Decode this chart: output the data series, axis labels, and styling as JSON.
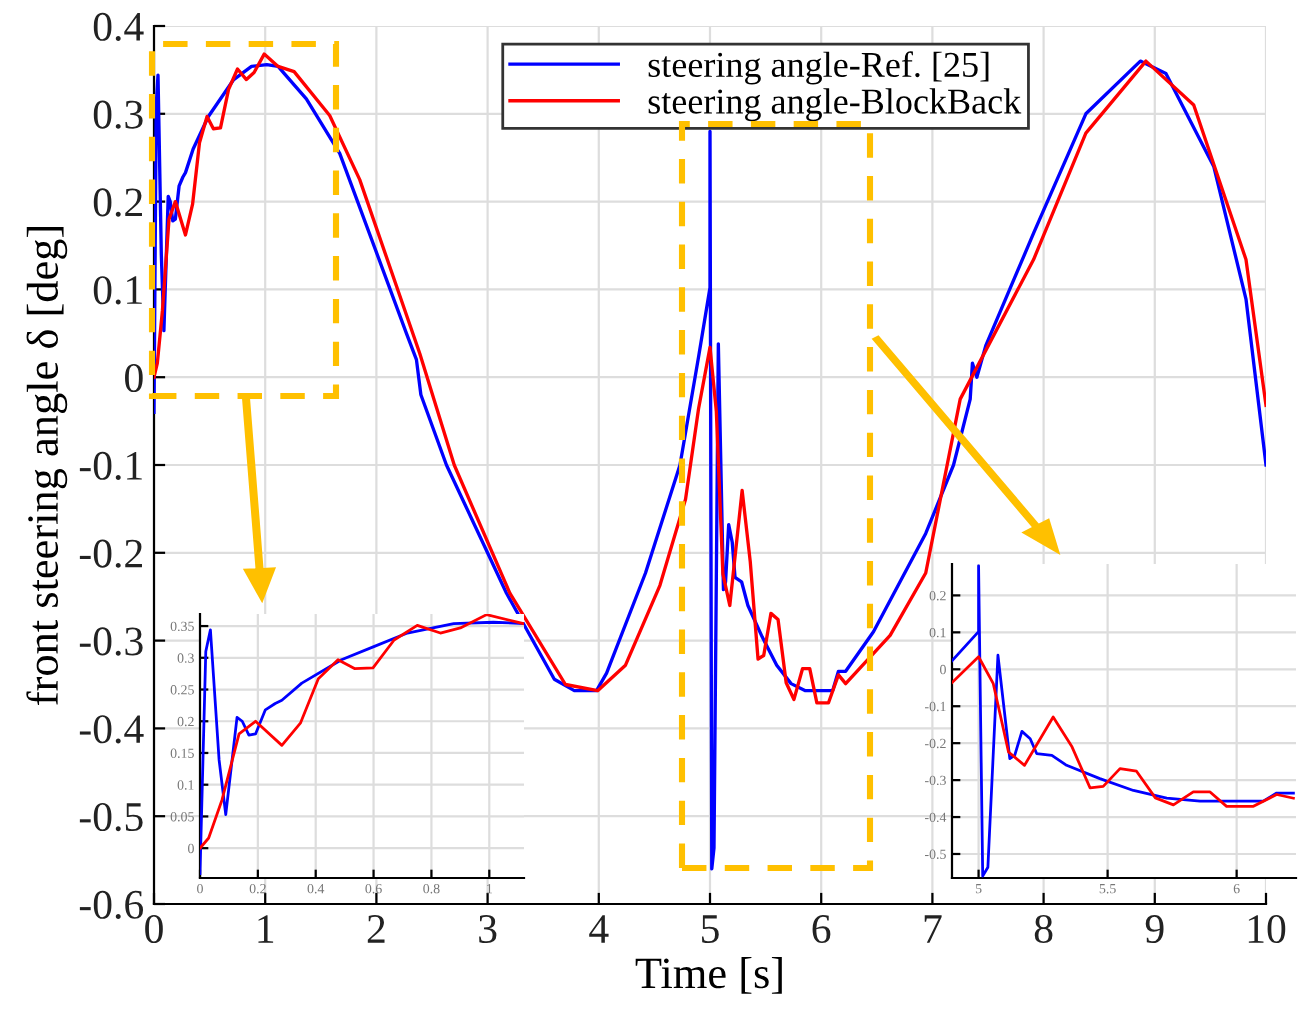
{
  "chart_data": [
    {
      "type": "line",
      "xlabel": "Time [s]",
      "ylabel": "front steering angle δ [deg]",
      "xlim": [
        0,
        10
      ],
      "ylim": [
        -0.6,
        0.4
      ],
      "xticks": [
        0,
        1,
        2,
        3,
        4,
        5,
        6,
        7,
        8,
        9,
        10
      ],
      "yticks": [
        -0.6,
        -0.5,
        -0.4,
        -0.3,
        -0.2,
        -0.1,
        0,
        0.1,
        0.2,
        0.3,
        0.4
      ],
      "grid": true,
      "legend": "top",
      "series": [
        {
          "name": "steering angle-Ref. [25]",
          "color": "#0000ff",
          "x": [
            0,
            0.02,
            0.036,
            0.066,
            0.089,
            0.128,
            0.146,
            0.169,
            0.192,
            0.226,
            0.26,
            0.283,
            0.352,
            0.489,
            0.603,
            0.717,
            0.877,
            1.014,
            1.116,
            1.17,
            1.37,
            1.67,
            2.27,
            2.36,
            2.4,
            2.63,
            3.17,
            3.6,
            3.78,
            3.98,
            4.07,
            4.42,
            4.73,
            4.897,
            5.0,
            5.0,
            5.016,
            5.036,
            5.075,
            5.121,
            5.14,
            5.168,
            5.2,
            5.225,
            5.284,
            5.341,
            5.47,
            5.6,
            5.729,
            5.858,
            6.103,
            6.155,
            6.22,
            6.47,
            6.94,
            7.19,
            7.34,
            7.36,
            7.4,
            7.48,
            7.91,
            8.38,
            8.87,
            9.1,
            9.53,
            9.82,
            10
          ],
          "values": [
            -0.04,
            0.31,
            0.344,
            0.139,
            0.053,
            0.206,
            0.2,
            0.178,
            0.18,
            0.218,
            0.228,
            0.233,
            0.26,
            0.297,
            0.318,
            0.339,
            0.354,
            0.356,
            0.354,
            0.346,
            0.317,
            0.255,
            0.05,
            0.02,
            -0.02,
            -0.1,
            -0.246,
            -0.344,
            -0.357,
            -0.357,
            -0.337,
            -0.223,
            -0.1,
            0.023,
            0.102,
            0.28,
            -0.56,
            -0.536,
            0.038,
            -0.242,
            -0.233,
            -0.168,
            -0.188,
            -0.228,
            -0.233,
            -0.26,
            -0.296,
            -0.328,
            -0.349,
            -0.357,
            -0.357,
            -0.335,
            -0.335,
            -0.29,
            -0.178,
            -0.1,
            -0.025,
            0.016,
            0.0,
            0.036,
            0.164,
            0.3,
            0.36,
            0.346,
            0.24,
            0.089,
            -0.1
          ]
        },
        {
          "name": "steering angle-BlockBack",
          "color": "#ff0000",
          "x": [
            0,
            0.03,
            0.076,
            0.135,
            0.192,
            0.283,
            0.347,
            0.409,
            0.477,
            0.534,
            0.598,
            0.671,
            0.751,
            0.831,
            0.9,
            0.991,
            1.116,
            1.26,
            1.58,
            1.85,
            2.39,
            2.7,
            3.2,
            3.7,
            3.99,
            4.24,
            4.55,
            4.78,
            4.897,
            5.0,
            5.057,
            5.116,
            5.178,
            5.289,
            5.362,
            5.432,
            5.483,
            5.548,
            5.612,
            5.685,
            5.755,
            5.832,
            5.897,
            5.961,
            6.065,
            6.155,
            6.22,
            6.62,
            6.94,
            7.25,
            7.91,
            8.38,
            8.92,
            9.35,
            9.82,
            10
          ],
          "values": [
            0,
            0.016,
            0.076,
            0.18,
            0.2,
            0.162,
            0.197,
            0.267,
            0.297,
            0.283,
            0.284,
            0.328,
            0.351,
            0.339,
            0.347,
            0.368,
            0.354,
            0.348,
            0.298,
            0.225,
            0.027,
            -0.1,
            -0.246,
            -0.35,
            -0.357,
            -0.328,
            -0.237,
            -0.139,
            -0.036,
            0.034,
            -0.039,
            -0.224,
            -0.26,
            -0.129,
            -0.21,
            -0.321,
            -0.317,
            -0.269,
            -0.276,
            -0.348,
            -0.367,
            -0.332,
            -0.332,
            -0.371,
            -0.371,
            -0.339,
            -0.349,
            -0.294,
            -0.223,
            -0.025,
            0.134,
            0.278,
            0.36,
            0.31,
            0.134,
            -0.032
          ]
        }
      ]
    },
    {
      "type": "line",
      "xlim": [
        0,
        1.12
      ],
      "ylim": [
        -0.047,
        0.369
      ],
      "xticks": [
        0,
        0.2,
        0.4,
        0.6,
        0.8,
        1
      ],
      "yticks": [
        0,
        0.05,
        0.1,
        0.15,
        0.2,
        0.25,
        0.3,
        0.35
      ],
      "grid": true,
      "series": [
        {
          "color": "#0000ff",
          "x": [
            0,
            0.02,
            0.036,
            0.066,
            0.089,
            0.128,
            0.146,
            0.169,
            0.192,
            0.226,
            0.26,
            0.283,
            0.352,
            0.489,
            0.603,
            0.717,
            0.877,
            1.014,
            1.116
          ],
          "values": [
            -0.04,
            0.31,
            0.344,
            0.139,
            0.053,
            0.206,
            0.2,
            0.178,
            0.18,
            0.218,
            0.228,
            0.233,
            0.26,
            0.297,
            0.318,
            0.339,
            0.354,
            0.356,
            0.354
          ]
        },
        {
          "color": "#ff0000",
          "x": [
            0,
            0.03,
            0.076,
            0.135,
            0.192,
            0.283,
            0.347,
            0.409,
            0.477,
            0.534,
            0.598,
            0.671,
            0.751,
            0.831,
            0.9,
            0.991,
            1.116
          ],
          "values": [
            0,
            0.016,
            0.076,
            0.18,
            0.2,
            0.162,
            0.197,
            0.267,
            0.297,
            0.283,
            0.284,
            0.328,
            0.351,
            0.339,
            0.347,
            0.368,
            0.354
          ]
        }
      ]
    },
    {
      "type": "line",
      "xlim": [
        4.897,
        6.23
      ],
      "ylim": [
        -0.565,
        0.285
      ],
      "xticks": [
        5,
        5.5,
        6
      ],
      "yticks": [
        -0.5,
        -0.4,
        -0.3,
        -0.2,
        -0.1,
        0,
        0.1,
        0.2
      ],
      "grid": true,
      "series": [
        {
          "color": "#0000ff",
          "x": [
            4.897,
            5.0,
            5.0,
            5.016,
            5.036,
            5.075,
            5.121,
            5.14,
            5.168,
            5.2,
            5.225,
            5.284,
            5.341,
            5.47,
            5.6,
            5.729,
            5.858,
            6.103,
            6.155,
            6.22
          ],
          "values": [
            0.023,
            0.102,
            0.28,
            -0.56,
            -0.536,
            0.038,
            -0.242,
            -0.233,
            -0.168,
            -0.188,
            -0.228,
            -0.233,
            -0.26,
            -0.296,
            -0.328,
            -0.349,
            -0.357,
            -0.357,
            -0.335,
            -0.335
          ]
        },
        {
          "color": "#ff0000",
          "x": [
            4.897,
            5.0,
            5.057,
            5.116,
            5.178,
            5.289,
            5.362,
            5.432,
            5.483,
            5.548,
            5.612,
            5.685,
            5.755,
            5.832,
            5.897,
            5.961,
            6.065,
            6.155,
            6.22
          ],
          "values": [
            -0.036,
            0.034,
            -0.039,
            -0.224,
            -0.26,
            -0.129,
            -0.21,
            -0.321,
            -0.317,
            -0.269,
            -0.276,
            -0.348,
            -0.367,
            -0.332,
            -0.332,
            -0.371,
            -0.371,
            -0.339,
            -0.349
          ]
        }
      ]
    }
  ]
}
